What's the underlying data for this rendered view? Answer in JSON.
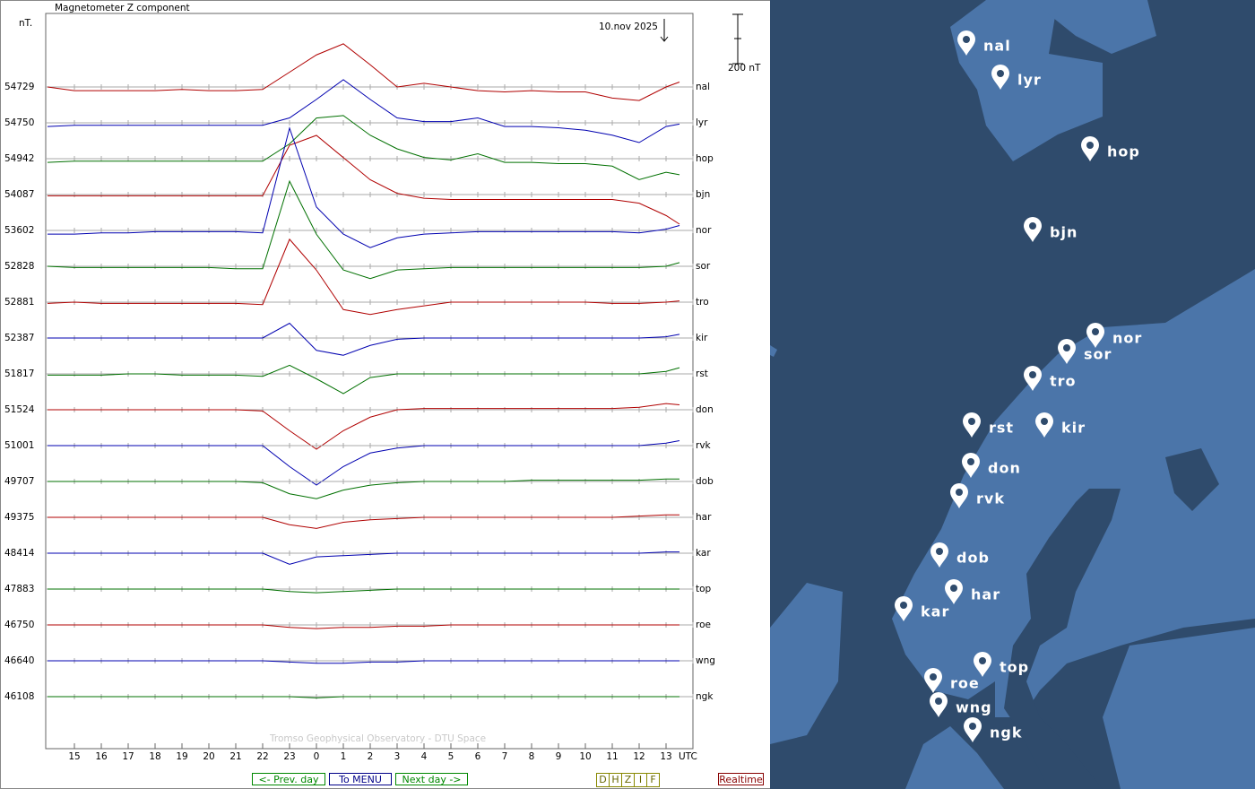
{
  "plot": {
    "title": "Magnetometer Z component",
    "unit": "nT.",
    "date": "10.nov 2025",
    "scale": {
      "value": 200,
      "label": "200 nT"
    },
    "hours": [
      "15",
      "16",
      "17",
      "18",
      "19",
      "20",
      "21",
      "22",
      "23",
      "0",
      "1",
      "2",
      "3",
      "4",
      "5",
      "6",
      "7",
      "8",
      "9",
      "10",
      "11",
      "12",
      "13"
    ],
    "time_unit": "UTC",
    "watermark": "Tromso Geophysical Observatory - DTU Space",
    "stations": [
      {
        "code": "nal",
        "baseline": 54729,
        "color": "#b00000",
        "offsets": [
          0,
          -15,
          -15,
          -15,
          -15,
          -10,
          -15,
          -15,
          -10,
          60,
          130,
          175,
          90,
          0,
          15,
          0,
          -15,
          -20,
          -15,
          -20,
          -20,
          -45,
          -55,
          0,
          20
        ]
      },
      {
        "code": "lyr",
        "baseline": 54750,
        "color": "#0000b0",
        "offsets": [
          -15,
          -10,
          -10,
          -10,
          -10,
          -10,
          -10,
          -10,
          -10,
          20,
          95,
          175,
          95,
          20,
          5,
          5,
          20,
          -15,
          -15,
          -20,
          -30,
          -50,
          -80,
          -15,
          -5
        ]
      },
      {
        "code": "hop",
        "baseline": 54942,
        "color": "#007000",
        "offsets": [
          -15,
          -10,
          -10,
          -10,
          -10,
          -10,
          -10,
          -10,
          -10,
          60,
          165,
          175,
          95,
          40,
          5,
          -5,
          20,
          -15,
          -15,
          -20,
          -20,
          -30,
          -85,
          -55,
          -65
        ]
      },
      {
        "code": "bjn",
        "baseline": 54087,
        "color": "#b00000",
        "offsets": [
          -5,
          -5,
          -5,
          -5,
          -5,
          -5,
          -5,
          -5,
          -5,
          200,
          240,
          150,
          60,
          5,
          -15,
          -20,
          -20,
          -20,
          -20,
          -20,
          -20,
          -20,
          -35,
          -85,
          -120
        ]
      },
      {
        "code": "nor",
        "baseline": 53602,
        "color": "#0000b0",
        "offsets": [
          -15,
          -15,
          -10,
          -10,
          -5,
          -5,
          -5,
          -5,
          -10,
          415,
          95,
          -15,
          -70,
          -30,
          -15,
          -10,
          -5,
          -5,
          -5,
          -5,
          -5,
          -5,
          -10,
          5,
          20
        ]
      },
      {
        "code": "sor",
        "baseline": 52828,
        "color": "#007000",
        "offsets": [
          0,
          -5,
          -5,
          -5,
          -5,
          -5,
          -5,
          -10,
          -10,
          345,
          130,
          -15,
          -50,
          -15,
          -10,
          -5,
          -5,
          -5,
          -5,
          -5,
          -5,
          -5,
          -5,
          0,
          15
        ]
      },
      {
        "code": "tro",
        "baseline": 52881,
        "color": "#b00000",
        "offsets": [
          -5,
          0,
          -5,
          -5,
          -5,
          -5,
          -5,
          -5,
          -10,
          255,
          130,
          -30,
          -50,
          -30,
          -15,
          0,
          0,
          0,
          0,
          0,
          0,
          -5,
          -5,
          0,
          5
        ]
      },
      {
        "code": "kir",
        "baseline": 52387,
        "color": "#0000b0",
        "offsets": [
          0,
          0,
          0,
          0,
          0,
          0,
          0,
          0,
          0,
          60,
          -50,
          -70,
          -30,
          -5,
          0,
          0,
          0,
          0,
          0,
          0,
          0,
          0,
          0,
          5,
          15
        ]
      },
      {
        "code": "rst",
        "baseline": 51817,
        "color": "#007000",
        "offsets": [
          -5,
          -5,
          -5,
          0,
          0,
          -5,
          -5,
          -5,
          -10,
          35,
          -20,
          -80,
          -15,
          0,
          0,
          0,
          0,
          0,
          0,
          0,
          0,
          0,
          0,
          10,
          25
        ]
      },
      {
        "code": "don",
        "baseline": 51524,
        "color": "#b00000",
        "offsets": [
          0,
          0,
          0,
          0,
          0,
          0,
          0,
          0,
          -5,
          -85,
          -160,
          -85,
          -30,
          0,
          5,
          5,
          5,
          5,
          5,
          5,
          5,
          5,
          10,
          25,
          20
        ]
      },
      {
        "code": "rvk",
        "baseline": 51001,
        "color": "#0000b0",
        "offsets": [
          0,
          0,
          0,
          0,
          0,
          0,
          0,
          0,
          0,
          -85,
          -160,
          -85,
          -30,
          -10,
          0,
          0,
          0,
          0,
          0,
          0,
          0,
          0,
          0,
          10,
          20
        ]
      },
      {
        "code": "dob",
        "baseline": 49707,
        "color": "#007000",
        "offsets": [
          0,
          0,
          0,
          0,
          0,
          0,
          0,
          0,
          -5,
          -50,
          -70,
          -35,
          -15,
          -5,
          0,
          0,
          0,
          0,
          5,
          5,
          5,
          5,
          5,
          10,
          10
        ]
      },
      {
        "code": "har",
        "baseline": 49375,
        "color": "#b00000",
        "offsets": [
          0,
          0,
          0,
          0,
          0,
          0,
          0,
          0,
          0,
          -30,
          -45,
          -20,
          -10,
          -5,
          0,
          0,
          0,
          0,
          0,
          0,
          0,
          0,
          5,
          10,
          10
        ]
      },
      {
        "code": "kar",
        "baseline": 48414,
        "color": "#0000b0",
        "offsets": [
          0,
          0,
          0,
          0,
          0,
          0,
          0,
          0,
          0,
          -45,
          -15,
          -10,
          -5,
          0,
          0,
          0,
          0,
          0,
          0,
          0,
          0,
          0,
          0,
          5,
          5
        ]
      },
      {
        "code": "top",
        "baseline": 47883,
        "color": "#007000",
        "offsets": [
          0,
          0,
          0,
          0,
          0,
          0,
          0,
          0,
          0,
          -10,
          -15,
          -10,
          -5,
          0,
          0,
          0,
          0,
          0,
          0,
          0,
          0,
          0,
          0,
          0,
          0
        ]
      },
      {
        "code": "roe",
        "baseline": 46750,
        "color": "#b00000",
        "offsets": [
          0,
          0,
          0,
          0,
          0,
          0,
          0,
          0,
          0,
          -10,
          -15,
          -10,
          -10,
          -5,
          -5,
          0,
          0,
          0,
          0,
          0,
          0,
          0,
          0,
          0,
          0
        ]
      },
      {
        "code": "wng",
        "baseline": 46640,
        "color": "#0000b0",
        "offsets": [
          0,
          0,
          0,
          0,
          0,
          0,
          0,
          0,
          0,
          -5,
          -10,
          -10,
          -5,
          -5,
          0,
          0,
          0,
          0,
          0,
          0,
          0,
          0,
          0,
          0,
          0
        ]
      },
      {
        "code": "ngk",
        "baseline": 46108,
        "color": "#007000",
        "offsets": [
          0,
          0,
          0,
          0,
          0,
          0,
          0,
          0,
          0,
          0,
          -5,
          0,
          0,
          0,
          0,
          0,
          0,
          0,
          0,
          0,
          0,
          0,
          0,
          0,
          0
        ]
      }
    ]
  },
  "nav": {
    "prev": "<- Prev. day",
    "menu": "To MENU",
    "next": "Next day ->",
    "components": [
      "D",
      "H",
      "Z",
      "I",
      "F"
    ],
    "realtime": "Realtime"
  },
  "map": {
    "pins": [
      "nal",
      "lyr",
      "hop",
      "bjn",
      "nor",
      "sor",
      "tro",
      "rst",
      "kir",
      "don",
      "rvk",
      "dob",
      "har",
      "kar",
      "top",
      "roe",
      "wng",
      "ngk"
    ]
  }
}
